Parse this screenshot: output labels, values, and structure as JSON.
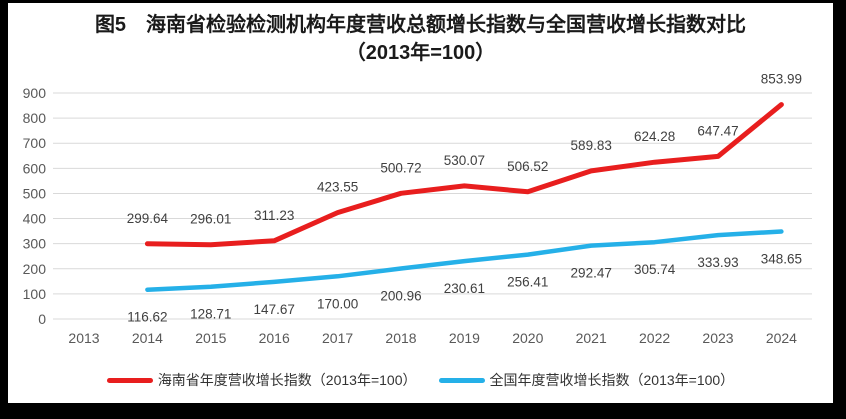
{
  "frame": {
    "border_color": "#000000",
    "page_background": "#ffffff"
  },
  "title": {
    "line1": "图5　海南省检验检测机构年度营收总额增长指数与全国营收增长指数对比",
    "line2": "（2013年=100）"
  },
  "chart_data": {
    "type": "line",
    "x": [
      2013,
      2014,
      2015,
      2016,
      2017,
      2018,
      2019,
      2020,
      2021,
      2022,
      2023,
      2024
    ],
    "series": [
      {
        "name": "海南省年度营收增长指数（2013年=100）",
        "color": "#e81e1e",
        "values": [
          null,
          299.64,
          296.01,
          311.23,
          423.55,
          500.72,
          530.07,
          506.52,
          589.83,
          624.28,
          647.47,
          853.99
        ],
        "labels": [
          "",
          "299.64",
          "296.01",
          "311.23",
          "423.55",
          "500.72",
          "530.07",
          "506.52",
          "589.83",
          "624.28",
          "647.47",
          "853.99"
        ],
        "label_side": "above",
        "line_width": 5
      },
      {
        "name": "全国年度营收增长指数（2013年=100）",
        "color": "#25b0e8",
        "values": [
          null,
          116.62,
          128.71,
          147.67,
          170.0,
          200.96,
          230.61,
          256.41,
          292.47,
          305.74,
          333.93,
          348.65
        ],
        "labels": [
          "",
          "116.62",
          "128.71",
          "147.67",
          "170.00",
          "200.96",
          "230.61",
          "256.41",
          "292.47",
          "305.74",
          "333.93",
          "348.65"
        ],
        "label_side": "below",
        "line_width": 4.5
      }
    ],
    "ylim": [
      0,
      900
    ],
    "ytick_step": 100,
    "yticks": [
      "0",
      "100",
      "200",
      "300",
      "400",
      "500",
      "600",
      "700",
      "800",
      "900"
    ],
    "grid": "horizontal",
    "legend_position": "bottom",
    "grid_color": "#d9d9d9",
    "axis_label_color": "#595959",
    "data_label_color": "#404040"
  }
}
